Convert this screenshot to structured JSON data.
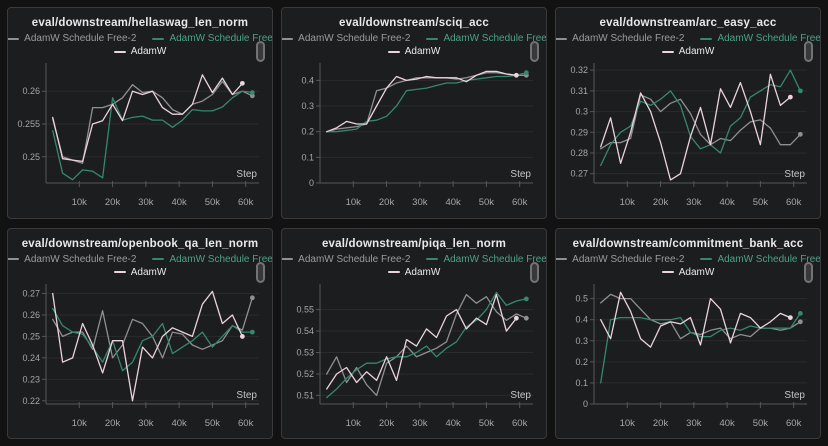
{
  "page": {
    "background": "#121213",
    "panel_background": "#1c1d1f"
  },
  "icons": {
    "panel_handle": "vertical-scroll-thumb-icon"
  },
  "legend": {
    "series": [
      {
        "label": "AdamW Schedule Free-2",
        "color": "#909093",
        "text_color": "#9c9c9f"
      },
      {
        "label": "AdamW Schedule Free",
        "color": "#35886d",
        "text_color": "#4ba286"
      },
      {
        "label": "AdamW",
        "color": "#ecd3dd",
        "text_color": "#e9e9e9"
      }
    ]
  },
  "x_axis": {
    "label": "Step",
    "range_k": [
      0,
      64
    ],
    "ticks_k": [
      10,
      20,
      30,
      40,
      50,
      60
    ],
    "tick_labels": [
      "10k",
      "20k",
      "30k",
      "40k",
      "50k",
      "60k"
    ],
    "x_start_k": 2,
    "x_step_k": 3
  },
  "chart_data": [
    {
      "type": "line",
      "title": "eval/downstream/hellaswag_len_norm",
      "xlabel": "Step",
      "ylim": [
        0.246,
        0.264
      ],
      "yticks": [
        0.25,
        0.255,
        0.26
      ],
      "ytick_labels": [
        "0.25",
        "0.255",
        "0.26"
      ],
      "series": [
        {
          "name": "AdamW Schedule Free-2",
          "values": [
            0.2558,
            0.25,
            0.2495,
            0.249,
            0.2575,
            0.2575,
            0.258,
            0.259,
            0.261,
            0.2598,
            0.26,
            0.259,
            0.2572,
            0.2565,
            0.258,
            0.2585,
            0.2595,
            0.2615,
            0.2595,
            0.26,
            0.2593
          ]
        },
        {
          "name": "AdamW Schedule Free",
          "values": [
            0.254,
            0.2475,
            0.2465,
            0.248,
            0.2478,
            0.2468,
            0.259,
            0.2556,
            0.256,
            0.2562,
            0.2556,
            0.2556,
            0.2545,
            0.2556,
            0.2572,
            0.257,
            0.257,
            0.2576,
            0.259,
            0.26,
            0.2598
          ]
        },
        {
          "name": "AdamW",
          "values": [
            0.256,
            0.2497,
            0.2495,
            0.2493,
            0.255,
            0.2555,
            0.258,
            0.2555,
            0.26,
            0.2595,
            0.26,
            0.2575,
            0.2565,
            0.2565,
            0.258,
            0.2625,
            0.2598,
            0.262,
            0.2595,
            0.2612
          ]
        }
      ]
    },
    {
      "type": "line",
      "title": "eval/downstream/sciq_acc",
      "xlabel": "Step",
      "ylim": [
        0,
        0.46
      ],
      "yticks": [
        0,
        0.1,
        0.2,
        0.3,
        0.4
      ],
      "ytick_labels": [
        "0",
        "0.1",
        "0.2",
        "0.3",
        "0.4"
      ],
      "series": [
        {
          "name": "AdamW Schedule Free-2",
          "values": [
            0.2,
            0.21,
            0.215,
            0.22,
            0.23,
            0.36,
            0.37,
            0.39,
            0.4,
            0.41,
            0.41,
            0.41,
            0.41,
            0.405,
            0.41,
            0.42,
            0.43,
            0.43,
            0.425,
            0.42,
            0.42
          ]
        },
        {
          "name": "AdamW Schedule Free",
          "values": [
            0.2,
            0.2,
            0.205,
            0.21,
            0.24,
            0.245,
            0.26,
            0.3,
            0.36,
            0.365,
            0.37,
            0.38,
            0.39,
            0.39,
            0.4,
            0.405,
            0.41,
            0.415,
            0.415,
            0.42,
            0.43
          ]
        },
        {
          "name": "AdamW",
          "values": [
            0.2,
            0.215,
            0.24,
            0.23,
            0.23,
            0.3,
            0.37,
            0.415,
            0.4,
            0.405,
            0.415,
            0.41,
            0.41,
            0.41,
            0.395,
            0.42,
            0.435,
            0.435,
            0.425,
            0.42
          ]
        }
      ]
    },
    {
      "type": "line",
      "title": "eval/downstream/arc_easy_acc",
      "xlabel": "Step",
      "ylim": [
        0.2655,
        0.3225
      ],
      "yticks": [
        0.27,
        0.28,
        0.29,
        0.3,
        0.31,
        0.32
      ],
      "ytick_labels": [
        "0.27",
        "0.28",
        "0.29",
        "0.3",
        "0.31",
        "0.32"
      ],
      "series": [
        {
          "name": "AdamW Schedule Free-2",
          "values": [
            0.282,
            0.285,
            0.285,
            0.287,
            0.308,
            0.306,
            0.3,
            0.304,
            0.306,
            0.299,
            0.289,
            0.284,
            0.287,
            0.286,
            0.291,
            0.295,
            0.296,
            0.292,
            0.284,
            0.284,
            0.289
          ]
        },
        {
          "name": "AdamW Schedule Free",
          "values": [
            0.274,
            0.284,
            0.29,
            0.293,
            0.305,
            0.303,
            0.306,
            0.31,
            0.303,
            0.288,
            0.282,
            0.284,
            0.28,
            0.293,
            0.297,
            0.307,
            0.31,
            0.313,
            0.312,
            0.32,
            0.31
          ]
        },
        {
          "name": "AdamW",
          "values": [
            0.283,
            0.297,
            0.275,
            0.29,
            0.309,
            0.3,
            0.285,
            0.267,
            0.27,
            0.288,
            0.302,
            0.284,
            0.311,
            0.302,
            0.314,
            0.3,
            0.284,
            0.318,
            0.303,
            0.307
          ]
        }
      ]
    },
    {
      "type": "line",
      "title": "eval/downstream/openbook_qa_len_norm",
      "xlabel": "Step",
      "ylim": [
        0.2185,
        0.2735
      ],
      "yticks": [
        0.22,
        0.23,
        0.24,
        0.25,
        0.26,
        0.27
      ],
      "ytick_labels": [
        "0.22",
        "0.23",
        "0.24",
        "0.25",
        "0.26",
        "0.27"
      ],
      "series": [
        {
          "name": "AdamW Schedule Free-2",
          "values": [
            0.258,
            0.25,
            0.252,
            0.252,
            0.244,
            0.262,
            0.24,
            0.246,
            0.258,
            0.256,
            0.25,
            0.24,
            0.252,
            0.251,
            0.246,
            0.244,
            0.246,
            0.248,
            0.255,
            0.253,
            0.268
          ]
        },
        {
          "name": "AdamW Schedule Free",
          "values": [
            0.263,
            0.255,
            0.252,
            0.251,
            0.245,
            0.238,
            0.248,
            0.234,
            0.238,
            0.248,
            0.25,
            0.256,
            0.242,
            0.245,
            0.248,
            0.252,
            0.245,
            0.25,
            0.255,
            0.252,
            0.252
          ]
        },
        {
          "name": "AdamW",
          "values": [
            0.27,
            0.238,
            0.24,
            0.256,
            0.246,
            0.233,
            0.248,
            0.248,
            0.22,
            0.245,
            0.24,
            0.25,
            0.254,
            0.252,
            0.25,
            0.265,
            0.271,
            0.256,
            0.26,
            0.25
          ]
        }
      ]
    },
    {
      "type": "line",
      "title": "eval/downstream/piqa_len_norm",
      "xlabel": "Step",
      "ylim": [
        0.506,
        0.561
      ],
      "yticks": [
        0.51,
        0.52,
        0.53,
        0.54,
        0.55
      ],
      "ytick_labels": [
        "0.51",
        "0.52",
        "0.53",
        "0.54",
        "0.55"
      ],
      "series": [
        {
          "name": "AdamW Schedule Free-2",
          "values": [
            0.52,
            0.528,
            0.516,
            0.523,
            0.515,
            0.51,
            0.525,
            0.528,
            0.533,
            0.528,
            0.53,
            0.532,
            0.535,
            0.548,
            0.557,
            0.553,
            0.556,
            0.549,
            0.545,
            0.548,
            0.546
          ]
        },
        {
          "name": "AdamW Schedule Free",
          "values": [
            0.509,
            0.513,
            0.518,
            0.522,
            0.525,
            0.525,
            0.527,
            0.528,
            0.528,
            0.53,
            0.533,
            0.528,
            0.532,
            0.535,
            0.542,
            0.545,
            0.55,
            0.558,
            0.552,
            0.554,
            0.555
          ]
        },
        {
          "name": "AdamW",
          "values": [
            0.513,
            0.52,
            0.523,
            0.516,
            0.521,
            0.517,
            0.528,
            0.517,
            0.536,
            0.533,
            0.541,
            0.537,
            0.547,
            0.55,
            0.541,
            0.546,
            0.543,
            0.557,
            0.54,
            0.546
          ]
        }
      ]
    },
    {
      "type": "line",
      "title": "eval/downstream/commitment_bank_acc",
      "xlabel": "Step",
      "ylim": [
        0,
        0.56
      ],
      "yticks": [
        0,
        0.1,
        0.2,
        0.3,
        0.4,
        0.5
      ],
      "ytick_labels": [
        "0",
        "0.1",
        "0.2",
        "0.3",
        "0.4",
        "0.5"
      ],
      "series": [
        {
          "name": "AdamW Schedule Free-2",
          "values": [
            0.48,
            0.52,
            0.5,
            0.5,
            0.45,
            0.4,
            0.38,
            0.39,
            0.31,
            0.34,
            0.33,
            0.35,
            0.36,
            0.31,
            0.33,
            0.32,
            0.36,
            0.36,
            0.35,
            0.36,
            0.39
          ]
        },
        {
          "name": "AdamW Schedule Free",
          "values": [
            0.1,
            0.4,
            0.41,
            0.41,
            0.41,
            0.4,
            0.4,
            0.4,
            0.41,
            0.34,
            0.32,
            0.32,
            0.35,
            0.36,
            0.35,
            0.37,
            0.36,
            0.36,
            0.36,
            0.36,
            0.43
          ]
        },
        {
          "name": "AdamW",
          "values": [
            0.4,
            0.31,
            0.53,
            0.44,
            0.31,
            0.27,
            0.37,
            0.39,
            0.38,
            0.41,
            0.28,
            0.5,
            0.45,
            0.29,
            0.43,
            0.41,
            0.36,
            0.39,
            0.43,
            0.41
          ]
        }
      ]
    }
  ],
  "style": {
    "grid_color": "#2b2b2e",
    "axis_color": "#56565a",
    "tick_label_color": "#a6a6a8",
    "step_label_color": "#c6c6c8",
    "title_color": "#e9e9ea"
  }
}
